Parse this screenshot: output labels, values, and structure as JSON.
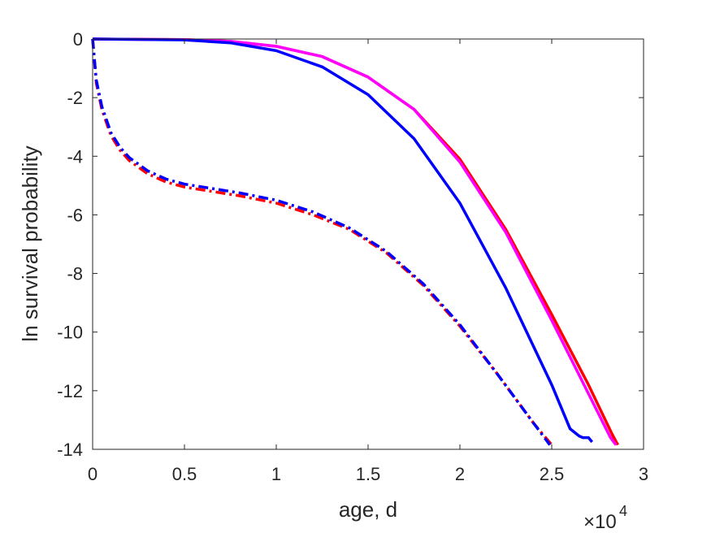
{
  "chart_data": {
    "type": "line",
    "xlabel": "age, d",
    "ylabel": "ln survival probability",
    "x_exponent_base": "×10",
    "x_exponent_power": "4",
    "xlim": [
      0,
      3
    ],
    "ylim": [
      -14,
      0
    ],
    "x_ticks": [
      0,
      0.5,
      1,
      1.5,
      2,
      2.5,
      3
    ],
    "x_tick_labels": [
      "0",
      "0.5",
      "1",
      "1.5",
      "2",
      "2.5",
      "3"
    ],
    "y_ticks": [
      0,
      -2,
      -4,
      -6,
      -8,
      -10,
      -12,
      -14
    ],
    "y_tick_labels": [
      "0",
      "-2",
      "-4",
      "-6",
      "-8",
      "-10",
      "-12",
      "-14"
    ],
    "grid": false,
    "series": [
      {
        "color": "#ff0000",
        "line_style": "solid",
        "x": [
          0,
          0.5,
          0.75,
          1.0,
          1.25,
          1.5,
          1.75,
          2.0,
          2.25,
          2.5,
          2.7,
          2.83,
          2.86
        ],
        "y": [
          0,
          -0.02,
          -0.08,
          -0.25,
          -0.6,
          -1.3,
          -2.4,
          -4.1,
          -6.5,
          -9.4,
          -11.8,
          -13.5,
          -13.85
        ]
      },
      {
        "color": "#ff00ff",
        "line_style": "solid",
        "x": [
          0,
          0.5,
          0.75,
          1.0,
          1.25,
          1.5,
          1.75,
          2.0,
          2.25,
          2.5,
          2.7,
          2.82,
          2.85
        ],
        "y": [
          0,
          -0.02,
          -0.08,
          -0.25,
          -0.6,
          -1.3,
          -2.4,
          -4.2,
          -6.6,
          -9.6,
          -12.1,
          -13.6,
          -13.85
        ]
      },
      {
        "color": "#0000ff",
        "line_style": "solid",
        "x": [
          0,
          0.5,
          0.75,
          1.0,
          1.25,
          1.5,
          1.75,
          2.0,
          2.25,
          2.5,
          2.6,
          2.65,
          2.67,
          2.7,
          2.72
        ],
        "y": [
          0,
          -0.03,
          -0.13,
          -0.4,
          -0.95,
          -1.9,
          -3.4,
          -5.6,
          -8.5,
          -11.8,
          -13.3,
          -13.55,
          -13.6,
          -13.6,
          -13.75
        ]
      },
      {
        "color": "#ff0000",
        "line_style": "dashdot",
        "x": [
          0,
          0.02,
          0.05,
          0.1,
          0.15,
          0.2,
          0.3,
          0.4,
          0.5,
          0.6,
          0.8,
          1.0,
          1.2,
          1.4,
          1.6,
          1.8,
          2.0,
          2.2,
          2.4,
          2.5
        ],
        "y": [
          0,
          -1.5,
          -2.4,
          -3.3,
          -3.8,
          -4.15,
          -4.6,
          -4.88,
          -5.05,
          -5.15,
          -5.35,
          -5.6,
          -6.0,
          -6.5,
          -7.3,
          -8.4,
          -9.8,
          -11.4,
          -13.1,
          -13.85
        ]
      },
      {
        "color": "#0000ff",
        "line_style": "dashdot",
        "x": [
          0,
          0.02,
          0.05,
          0.1,
          0.15,
          0.2,
          0.3,
          0.4,
          0.5,
          0.6,
          0.8,
          1.0,
          1.2,
          1.4,
          1.6,
          1.8,
          2.0,
          2.2,
          2.4,
          2.49
        ],
        "y": [
          0,
          -1.4,
          -2.3,
          -3.2,
          -3.7,
          -4.05,
          -4.5,
          -4.78,
          -4.95,
          -5.05,
          -5.25,
          -5.5,
          -5.9,
          -6.45,
          -7.25,
          -8.35,
          -9.75,
          -11.4,
          -13.1,
          -13.85
        ]
      }
    ]
  }
}
